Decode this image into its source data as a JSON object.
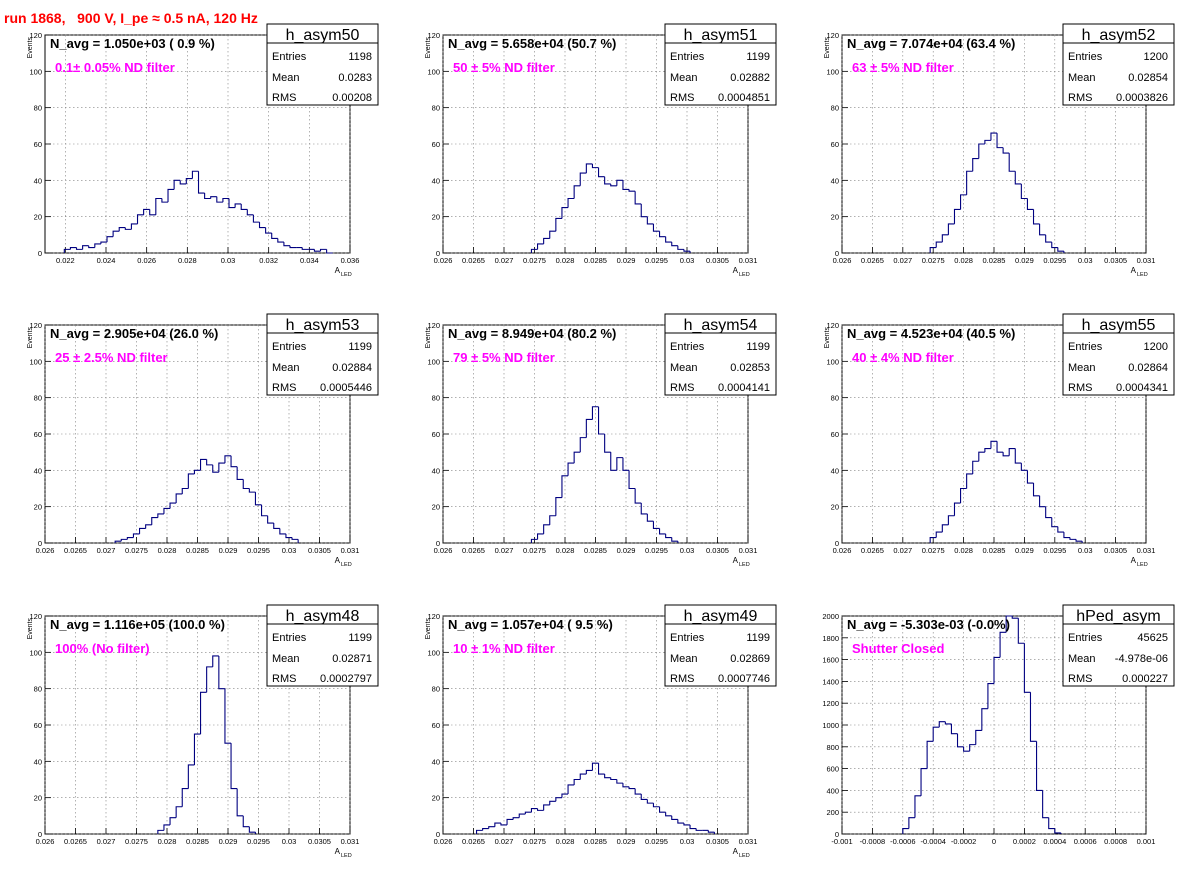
{
  "page_title": "run 1868,   900 V, I_pe ≈ 0.5 nA, 120 Hz",
  "colors": {
    "title": "#ff0000",
    "annotation": "#ff00ff",
    "histogram": "#000080",
    "grid": "#808080"
  },
  "chart_data": [
    {
      "type": "bar",
      "histname": "h_asym50",
      "navg_text": "N_avg = 1.050e+03 ( 0.9 %)",
      "annotation": "0.1± 0.05% ND filter",
      "stats": {
        "entries_label": "Entries",
        "entries": "1198",
        "mean_label": "Mean",
        "mean": "0.0283",
        "rms_label": "RMS",
        "rms": "0.00208"
      },
      "ylabel": "Events",
      "xlabel": "A",
      "xlabel_sub": "LED",
      "xlim": [
        0.021,
        0.036
      ],
      "ylim": [
        0,
        120
      ],
      "xticks": [
        "0.022",
        "0.024",
        "0.026",
        "0.028",
        "0.03",
        "0.032",
        "0.034",
        "0.036"
      ],
      "yticks": [
        "0",
        "20",
        "40",
        "60",
        "80",
        "100",
        "120"
      ],
      "x": [
        0.0221,
        0.0224,
        0.0227,
        0.023,
        0.0233,
        0.0236,
        0.0239,
        0.0242,
        0.0245,
        0.0248,
        0.0251,
        0.0254,
        0.0257,
        0.026,
        0.0263,
        0.0266,
        0.0269,
        0.0272,
        0.0275,
        0.0278,
        0.0281,
        0.0284,
        0.0287,
        0.029,
        0.0293,
        0.0296,
        0.0299,
        0.0302,
        0.0305,
        0.0308,
        0.0311,
        0.0314,
        0.0317,
        0.032,
        0.0323,
        0.0326,
        0.0329,
        0.0332,
        0.0335,
        0.0338,
        0.0341,
        0.0344,
        0.0347,
        0.035
      ],
      "values": [
        2,
        3,
        2,
        4,
        3,
        5,
        6,
        9,
        12,
        14,
        13,
        16,
        21,
        24,
        21,
        30,
        28,
        35,
        40,
        38,
        41,
        45,
        33,
        30,
        31,
        28,
        30,
        25,
        27,
        24,
        21,
        17,
        14,
        11,
        8,
        6,
        4,
        3,
        3,
        2,
        2,
        1,
        2,
        0
      ]
    },
    {
      "type": "bar",
      "histname": "h_asym51",
      "navg_text": "N_avg = 5.658e+04 (50.7 %)",
      "annotation": "50 ± 5% ND filter",
      "stats": {
        "entries_label": "Entries",
        "entries": "1199",
        "mean_label": "Mean",
        "mean": "0.02882",
        "rms_label": "RMS",
        "rms": "0.0004851"
      },
      "ylabel": "Events",
      "xlabel": "A",
      "xlabel_sub": "LED",
      "xlim": [
        0.026,
        0.031
      ],
      "ylim": [
        0,
        120
      ],
      "xticks": [
        "0.026",
        "0.0265",
        "0.027",
        "0.0275",
        "0.028",
        "0.0285",
        "0.029",
        "0.0295",
        "0.03",
        "0.0305",
        "0.031"
      ],
      "yticks": [
        "0",
        "20",
        "40",
        "60",
        "80",
        "100",
        "120"
      ],
      "x": [
        0.0275,
        0.0276,
        0.0277,
        0.0278,
        0.0279,
        0.028,
        0.0281,
        0.0282,
        0.0283,
        0.0284,
        0.0285,
        0.0286,
        0.0287,
        0.0288,
        0.0289,
        0.029,
        0.0291,
        0.0292,
        0.0293,
        0.0294,
        0.0295,
        0.0296,
        0.0297,
        0.0298,
        0.0299,
        0.03
      ],
      "values": [
        2,
        5,
        8,
        12,
        19,
        25,
        30,
        37,
        44,
        49,
        47,
        42,
        38,
        37,
        40,
        35,
        34,
        27,
        20,
        16,
        12,
        9,
        6,
        4,
        2,
        1
      ]
    },
    {
      "type": "bar",
      "histname": "h_asym52",
      "navg_text": "N_avg = 7.074e+04 (63.4 %)",
      "annotation": "63 ± 5% ND filter",
      "stats": {
        "entries_label": "Entries",
        "entries": "1200",
        "mean_label": "Mean",
        "mean": "0.02854",
        "rms_label": "RMS",
        "rms": "0.0003826"
      },
      "ylabel": "Events",
      "xlabel": "A",
      "xlabel_sub": "LED",
      "xlim": [
        0.026,
        0.031
      ],
      "ylim": [
        0,
        120
      ],
      "xticks": [
        "0.026",
        "0.0265",
        "0.027",
        "0.0275",
        "0.028",
        "0.0285",
        "0.029",
        "0.0295",
        "0.03",
        "0.0305",
        "0.031"
      ],
      "yticks": [
        "0",
        "20",
        "40",
        "60",
        "80",
        "100",
        "120"
      ],
      "x": [
        0.0275,
        0.0276,
        0.0277,
        0.0278,
        0.0279,
        0.028,
        0.0281,
        0.0282,
        0.0283,
        0.0284,
        0.0285,
        0.0286,
        0.0287,
        0.0288,
        0.0289,
        0.029,
        0.0291,
        0.0292,
        0.0293,
        0.0294,
        0.0295,
        0.0296
      ],
      "values": [
        3,
        6,
        10,
        16,
        24,
        32,
        45,
        52,
        60,
        62,
        66,
        58,
        55,
        45,
        38,
        30,
        24,
        16,
        10,
        6,
        3,
        1
      ]
    },
    {
      "type": "bar",
      "histname": "h_asym53",
      "navg_text": "N_avg = 2.905e+04 (26.0 %)",
      "annotation": "25 ± 2.5% ND filter",
      "stats": {
        "entries_label": "Entries",
        "entries": "1199",
        "mean_label": "Mean",
        "mean": "0.02884",
        "rms_label": "RMS",
        "rms": "0.0005446"
      },
      "ylabel": "Events",
      "xlabel": "A",
      "xlabel_sub": "LED",
      "xlim": [
        0.026,
        0.031
      ],
      "ylim": [
        0,
        120
      ],
      "xticks": [
        "0.026",
        "0.0265",
        "0.027",
        "0.0275",
        "0.028",
        "0.0285",
        "0.029",
        "0.0295",
        "0.03",
        "0.0305",
        "0.031"
      ],
      "yticks": [
        "0",
        "20",
        "40",
        "60",
        "80",
        "100",
        "120"
      ],
      "x": [
        0.0272,
        0.0273,
        0.0274,
        0.0275,
        0.0276,
        0.0277,
        0.0278,
        0.0279,
        0.028,
        0.0281,
        0.0282,
        0.0283,
        0.0284,
        0.0285,
        0.0286,
        0.0287,
        0.0288,
        0.0289,
        0.029,
        0.0291,
        0.0292,
        0.0293,
        0.0294,
        0.0295,
        0.0296,
        0.0297,
        0.0298,
        0.0299,
        0.03,
        0.0301
      ],
      "values": [
        1,
        2,
        3,
        5,
        8,
        10,
        14,
        16,
        19,
        22,
        27,
        30,
        38,
        40,
        46,
        43,
        39,
        44,
        48,
        42,
        35,
        30,
        28,
        21,
        15,
        11,
        8,
        5,
        3,
        2
      ]
    },
    {
      "type": "bar",
      "histname": "h_asym54",
      "navg_text": "N_avg = 8.949e+04 (80.2 %)",
      "annotation": "79 ± 5% ND filter",
      "stats": {
        "entries_label": "Entries",
        "entries": "1199",
        "mean_label": "Mean",
        "mean": "0.02853",
        "rms_label": "RMS",
        "rms": "0.0004141"
      },
      "ylabel": "Events",
      "xlabel": "A",
      "xlabel_sub": "LED",
      "xlim": [
        0.026,
        0.031
      ],
      "ylim": [
        0,
        120
      ],
      "xticks": [
        "0.026",
        "0.0265",
        "0.027",
        "0.0275",
        "0.028",
        "0.0285",
        "0.029",
        "0.0295",
        "0.03",
        "0.0305",
        "0.031"
      ],
      "yticks": [
        "0",
        "20",
        "40",
        "60",
        "80",
        "100",
        "120"
      ],
      "x": [
        0.0275,
        0.0276,
        0.0277,
        0.0278,
        0.0279,
        0.028,
        0.0281,
        0.0282,
        0.0283,
        0.0284,
        0.0285,
        0.0286,
        0.0287,
        0.0288,
        0.0289,
        0.029,
        0.0291,
        0.0292,
        0.0293,
        0.0294,
        0.0295,
        0.0296,
        0.0297,
        0.0298
      ],
      "values": [
        2,
        5,
        10,
        15,
        25,
        37,
        44,
        50,
        58,
        68,
        75,
        60,
        50,
        40,
        47,
        40,
        30,
        22,
        16,
        12,
        8,
        5,
        3,
        1
      ]
    },
    {
      "type": "bar",
      "histname": "h_asym55",
      "navg_text": "N_avg = 4.523e+04 (40.5 %)",
      "annotation": "40 ± 4% ND filter",
      "stats": {
        "entries_label": "Entries",
        "entries": "1200",
        "mean_label": "Mean",
        "mean": "0.02864",
        "rms_label": "RMS",
        "rms": "0.0004341"
      },
      "ylabel": "Events",
      "xlabel": "A",
      "xlabel_sub": "LED",
      "xlim": [
        0.026,
        0.031
      ],
      "ylim": [
        0,
        120
      ],
      "xticks": [
        "0.026",
        "0.0265",
        "0.027",
        "0.0275",
        "0.028",
        "0.0285",
        "0.029",
        "0.0295",
        "0.03",
        "0.0305",
        "0.031"
      ],
      "yticks": [
        "0",
        "20",
        "40",
        "60",
        "80",
        "100",
        "120"
      ],
      "x": [
        0.0275,
        0.0276,
        0.0277,
        0.0278,
        0.0279,
        0.028,
        0.0281,
        0.0282,
        0.0283,
        0.0284,
        0.0285,
        0.0286,
        0.0287,
        0.0288,
        0.0289,
        0.029,
        0.0291,
        0.0292,
        0.0293,
        0.0294,
        0.0295,
        0.0296,
        0.0297,
        0.0298,
        0.0299
      ],
      "values": [
        3,
        6,
        10,
        15,
        22,
        30,
        38,
        45,
        50,
        52,
        56,
        50,
        48,
        52,
        44,
        40,
        33,
        26,
        20,
        14,
        9,
        6,
        3,
        2,
        1
      ]
    },
    {
      "type": "bar",
      "histname": "h_asym48",
      "navg_text": "N_avg = 1.116e+05 (100.0 %)",
      "annotation": "100% (No filter)",
      "stats": {
        "entries_label": "Entries",
        "entries": "1199",
        "mean_label": "Mean",
        "mean": "0.02871",
        "rms_label": "RMS",
        "rms": "0.0002797"
      },
      "ylabel": "Events",
      "xlabel": "A",
      "xlabel_sub": "LED",
      "xlim": [
        0.026,
        0.031
      ],
      "ylim": [
        0,
        120
      ],
      "xticks": [
        "0.026",
        "0.0265",
        "0.027",
        "0.0275",
        "0.028",
        "0.0285",
        "0.029",
        "0.0295",
        "0.03",
        "0.0305",
        "0.031"
      ],
      "yticks": [
        "0",
        "20",
        "40",
        "60",
        "80",
        "100",
        "120"
      ],
      "x": [
        0.0279,
        0.028,
        0.0281,
        0.0282,
        0.0283,
        0.0284,
        0.0285,
        0.0286,
        0.0287,
        0.0288,
        0.0289,
        0.029,
        0.0291,
        0.0292,
        0.0293,
        0.0294
      ],
      "values": [
        2,
        5,
        9,
        15,
        25,
        38,
        55,
        78,
        92,
        98,
        80,
        50,
        25,
        10,
        4,
        1
      ]
    },
    {
      "type": "bar",
      "histname": "h_asym49",
      "navg_text": "N_avg = 1.057e+04 ( 9.5 %)",
      "annotation": "10 ± 1% ND filter",
      "stats": {
        "entries_label": "Entries",
        "entries": "1199",
        "mean_label": "Mean",
        "mean": "0.02869",
        "rms_label": "RMS",
        "rms": "0.0007746"
      },
      "ylabel": "Events",
      "xlabel": "A",
      "xlabel_sub": "LED",
      "xlim": [
        0.026,
        0.031
      ],
      "ylim": [
        0,
        120
      ],
      "xticks": [
        "0.026",
        "0.0265",
        "0.027",
        "0.0275",
        "0.028",
        "0.0285",
        "0.029",
        "0.0295",
        "0.03",
        "0.0305",
        "0.031"
      ],
      "yticks": [
        "0",
        "20",
        "40",
        "60",
        "80",
        "100",
        "120"
      ],
      "x": [
        0.0266,
        0.0267,
        0.0268,
        0.0269,
        0.027,
        0.0271,
        0.0272,
        0.0273,
        0.0274,
        0.0275,
        0.0276,
        0.0277,
        0.0278,
        0.0279,
        0.028,
        0.0281,
        0.0282,
        0.0283,
        0.0284,
        0.0285,
        0.0286,
        0.0287,
        0.0288,
        0.0289,
        0.029,
        0.0291,
        0.0292,
        0.0293,
        0.0294,
        0.0295,
        0.0296,
        0.0297,
        0.0298,
        0.0299,
        0.03,
        0.0301,
        0.0302,
        0.0303,
        0.0304
      ],
      "values": [
        2,
        3,
        4,
        6,
        5,
        8,
        9,
        11,
        12,
        14,
        13,
        16,
        18,
        20,
        22,
        27,
        30,
        33,
        35,
        39,
        33,
        31,
        30,
        28,
        26,
        25,
        22,
        19,
        17,
        15,
        12,
        10,
        8,
        6,
        5,
        3,
        2,
        2,
        1
      ]
    },
    {
      "type": "bar",
      "histname": "hPed_asym",
      "navg_text": "N_avg = -5.303e-03 (-0.0%)",
      "annotation": "Shutter Closed",
      "stats": {
        "entries_label": "Entries",
        "entries": "45625",
        "mean_label": "Mean",
        "mean": "-4.978e-06",
        "rms_label": "RMS",
        "rms": "0.000227"
      },
      "ylabel": "",
      "xlabel": "",
      "xlabel_sub": "",
      "xlim": [
        -0.001,
        0.001
      ],
      "ylim": [
        0,
        2000
      ],
      "xticks": [
        "-0.001",
        "-0.0008",
        "-0.0006",
        "-0.0004",
        "-0.0002",
        "0",
        "0.0002",
        "0.0004",
        "0.0006",
        "0.0008",
        "0.001"
      ],
      "yticks": [
        "0",
        "200",
        "400",
        "600",
        "800",
        "1000",
        "1200",
        "1400",
        "1600",
        "1800",
        "2000"
      ],
      "x": [
        -0.00058,
        -0.00054,
        -0.0005,
        -0.00046,
        -0.00042,
        -0.00038,
        -0.00034,
        -0.0003,
        -0.00026,
        -0.00022,
        -0.00018,
        -0.00014,
        -0.0001,
        -6e-05,
        -2e-05,
        2e-05,
        6e-05,
        0.0001,
        0.00014,
        0.00018,
        0.00022,
        0.00026,
        0.0003,
        0.00034,
        0.00038,
        0.00042
      ],
      "values": [
        50,
        150,
        350,
        600,
        850,
        980,
        1030,
        1010,
        920,
        800,
        760,
        820,
        950,
        1150,
        1380,
        1620,
        1850,
        2000,
        1980,
        1750,
        1300,
        850,
        400,
        150,
        50,
        10
      ]
    }
  ]
}
